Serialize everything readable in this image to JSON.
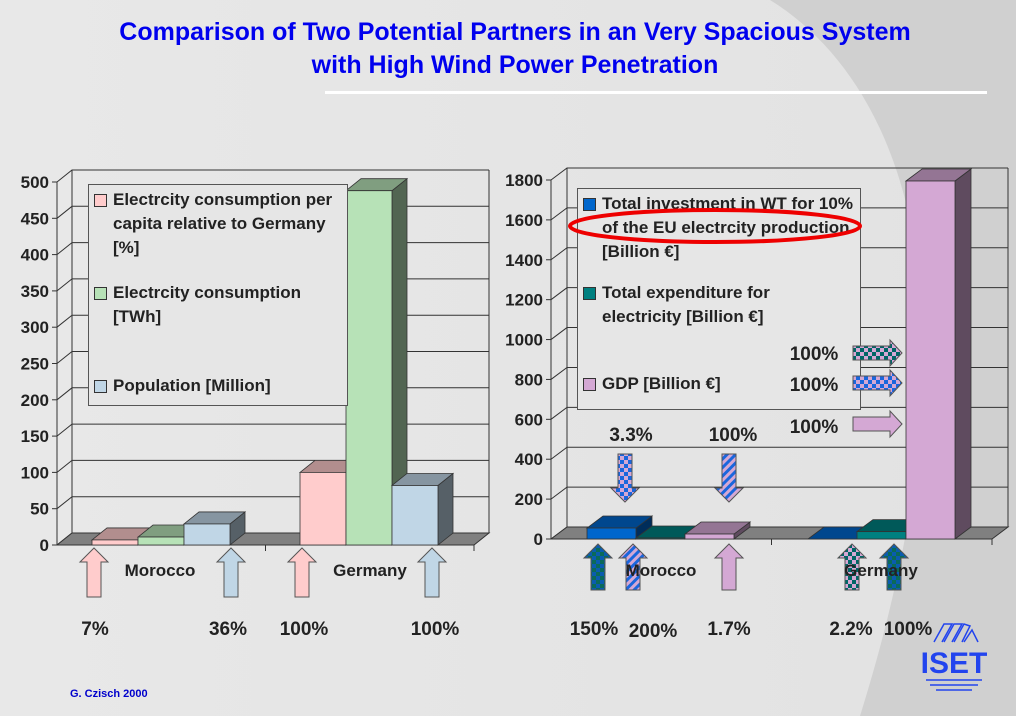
{
  "title_line1": "Comparison of Two Potential Partners in an Very Spacious System",
  "title_line2": "with High Wind Power Penetration",
  "credit": "G. Czisch 2000",
  "logo_text": "ISET",
  "colors": {
    "title": "#0000ee",
    "pink": "#ffcccc",
    "green": "#b7e2b7",
    "lightblue": "#c0d6e6",
    "blue": "#0066cc",
    "teal": "#008080",
    "lilac": "#d4a8d4",
    "highlight": "#ee0000"
  },
  "chart_data": [
    {
      "type": "bar",
      "categories": [
        "Morocco",
        "Germany"
      ],
      "ylim": [
        0,
        500
      ],
      "yticks": [
        0,
        50,
        100,
        150,
        200,
        250,
        300,
        350,
        400,
        450,
        500
      ],
      "series": [
        {
          "name": "Electrcity consumption per capita relative to Germany [%]",
          "color": "#ffcccc",
          "values": [
            7,
            100
          ]
        },
        {
          "name": "Electrcity consumption [TWh]",
          "color": "#b7e2b7",
          "values": [
            11,
            488
          ]
        },
        {
          "name": "Population [Million]",
          "color": "#c0d6e6",
          "values": [
            29,
            82
          ]
        }
      ],
      "legend": "top-left",
      "annotations": [
        "7%",
        "36%",
        "100%",
        "100%"
      ]
    },
    {
      "type": "bar",
      "categories": [
        "Morocco",
        "Germany"
      ],
      "ylim": [
        0,
        1800
      ],
      "yticks": [
        0,
        200,
        400,
        600,
        800,
        1000,
        1200,
        1400,
        1600,
        1800
      ],
      "series": [
        {
          "name": "Total investment in WT for 10% of the EU electrcity production [Billion €]",
          "color": "#0066cc",
          "values": [
            55,
            0
          ]
        },
        {
          "name": "Total expenditure for electricity [Billion €]",
          "color": "#008080",
          "values": [
            5,
            37
          ]
        },
        {
          "name": "GDP [Billion €]",
          "color": "#d4a8d4",
          "values": [
            25,
            1795
          ]
        }
      ],
      "legend": "top-left",
      "annotations": {
        "down": [
          "3.3%",
          "100%"
        ],
        "right": [
          "100%",
          "100%",
          "100%"
        ],
        "bottom": [
          "150%",
          "200%",
          "1.7%",
          "2.2%",
          "100%"
        ]
      }
    }
  ]
}
